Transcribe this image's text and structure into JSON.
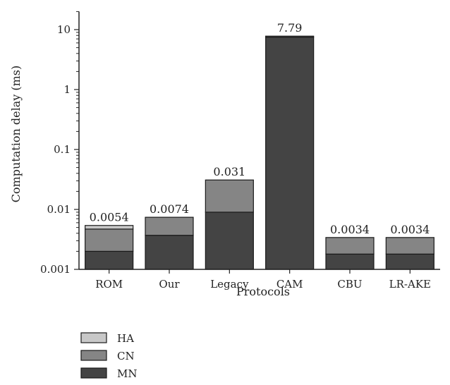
{
  "chart_data": {
    "type": "bar",
    "stacked": true,
    "scale_y": "log",
    "xlabel": "Protocols",
    "ylabel": "Computation delay (ms)",
    "ylim": [
      0.001,
      20
    ],
    "yticks": [
      {
        "value": 0.001,
        "label": "0.001"
      },
      {
        "value": 0.01,
        "label": "0.01"
      },
      {
        "value": 0.1,
        "label": "0.1"
      },
      {
        "value": 1,
        "label": "1"
      },
      {
        "value": 10,
        "label": "10"
      }
    ],
    "categories": [
      "ROM",
      "Our",
      "Legacy",
      "CAM",
      "CBU",
      "LR-AKE"
    ],
    "series": [
      {
        "name": "MN",
        "color": "#444444",
        "values": [
          0.002,
          0.0037,
          0.009,
          7.5,
          0.0018,
          0.0018
        ]
      },
      {
        "name": "CN",
        "color": "#858585",
        "values": [
          0.0027,
          0.0037,
          0.022,
          0.29,
          0.0016,
          0.0016
        ]
      },
      {
        "name": "HA",
        "color": "#c8c8c8",
        "values": [
          0.0007,
          0,
          0,
          0,
          0,
          0
        ]
      }
    ],
    "totals": [
      "0.0054",
      "0.0074",
      "0.031",
      "7.79",
      "0.0034",
      "0.0034"
    ],
    "legend": {
      "position": "bottom-left",
      "order": [
        "HA",
        "CN",
        "MN"
      ]
    },
    "grid": false
  }
}
